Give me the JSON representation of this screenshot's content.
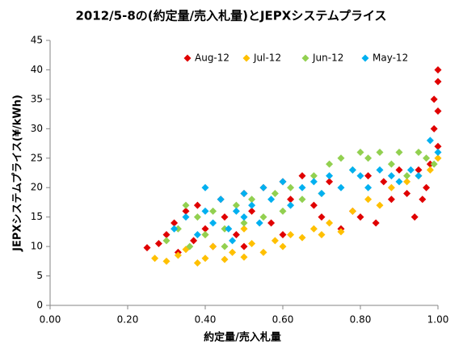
{
  "chart_data": {
    "type": "scatter",
    "title": "2012/5-8の(約定量/売入札量)とJEPXシステムプライス",
    "x_label": "約定量/売入札量",
    "y_label": "JEPXシステムプライス(¥/kWh)",
    "xlim": [
      0,
      1
    ],
    "xticks": [
      {
        "value": 0,
        "label": "0.00"
      },
      {
        "value": 0.2,
        "label": "0.20"
      },
      {
        "value": 0.4,
        "label": "0.40"
      },
      {
        "value": 0.6,
        "label": "0.60"
      },
      {
        "value": 0.8,
        "label": "0.80"
      },
      {
        "value": 1,
        "label": "1.00"
      }
    ],
    "ylim": [
      0,
      45
    ],
    "yticks": [
      0,
      5,
      10,
      15,
      20,
      25,
      30,
      35,
      40,
      45
    ],
    "grid": false,
    "legend": "top",
    "series": [
      {
        "name": "Aug-12",
        "color": "#e00000",
        "x": [
          0.25,
          0.28,
          0.3,
          0.32,
          0.33,
          0.35,
          0.37,
          0.38,
          0.4,
          0.42,
          0.44,
          0.45,
          0.48,
          0.5,
          0.52,
          0.55,
          0.57,
          0.6,
          0.62,
          0.65,
          0.68,
          0.7,
          0.72,
          0.75,
          0.78,
          0.8,
          0.82,
          0.84,
          0.86,
          0.88,
          0.9,
          0.92,
          0.94,
          0.95,
          0.96,
          0.98,
          0.99,
          0.99,
          1.0,
          1.0,
          1.0,
          1.0,
          0.97,
          0.6,
          0.5
        ],
        "values": [
          9.8,
          10.5,
          12,
          14,
          9,
          16,
          11,
          17,
          13,
          10,
          18,
          15,
          12,
          19,
          16,
          20,
          14,
          21,
          18,
          22,
          17,
          15,
          21,
          13,
          16,
          15,
          22,
          14,
          21,
          18,
          23,
          19,
          15,
          23,
          18,
          24,
          30,
          35,
          38,
          40,
          27,
          33,
          20,
          12,
          10
        ]
      },
      {
        "name": "Jul-12",
        "color": "#ffc000",
        "x": [
          0.27,
          0.3,
          0.33,
          0.35,
          0.38,
          0.4,
          0.42,
          0.45,
          0.47,
          0.5,
          0.52,
          0.55,
          0.58,
          0.6,
          0.62,
          0.65,
          0.68,
          0.7,
          0.72,
          0.75,
          0.78,
          0.82,
          0.85,
          0.88,
          0.92,
          0.95,
          0.98,
          1.0,
          0.4,
          0.5
        ],
        "values": [
          8,
          7.5,
          8.5,
          9.5,
          7.2,
          8,
          10,
          7.8,
          9,
          8.2,
          10.5,
          9,
          11,
          10,
          12,
          11.5,
          13,
          12,
          14,
          12.5,
          16,
          18,
          17,
          20,
          21,
          22,
          23,
          25,
          12,
          13
        ]
      },
      {
        "name": "Jun-12",
        "color": "#92d050",
        "x": [
          0.3,
          0.33,
          0.36,
          0.38,
          0.4,
          0.42,
          0.45,
          0.48,
          0.5,
          0.52,
          0.55,
          0.58,
          0.6,
          0.62,
          0.65,
          0.68,
          0.7,
          0.72,
          0.75,
          0.78,
          0.8,
          0.82,
          0.85,
          0.88,
          0.9,
          0.92,
          0.95,
          0.97,
          0.99,
          0.35,
          0.45
        ],
        "values": [
          11,
          13,
          10,
          15,
          12,
          16,
          13,
          17,
          14,
          18,
          15,
          19,
          16,
          20,
          18,
          22,
          19,
          24,
          25,
          23,
          26,
          25,
          26,
          24,
          26,
          22,
          26,
          25,
          24,
          17,
          10
        ]
      },
      {
        "name": "May-12",
        "color": "#00b0f0",
        "x": [
          0.32,
          0.35,
          0.38,
          0.4,
          0.42,
          0.44,
          0.46,
          0.48,
          0.5,
          0.5,
          0.52,
          0.54,
          0.55,
          0.57,
          0.6,
          0.62,
          0.65,
          0.68,
          0.7,
          0.72,
          0.75,
          0.78,
          0.8,
          0.82,
          0.85,
          0.88,
          0.9,
          0.93,
          0.95,
          0.98,
          1.0,
          0.47,
          0.4
        ],
        "values": [
          13,
          15,
          12,
          16,
          14,
          18,
          13,
          16,
          15,
          19,
          17,
          14,
          20,
          18,
          21,
          17,
          20,
          21,
          19,
          22,
          20,
          23,
          22,
          20,
          23,
          22,
          21,
          23,
          22,
          28,
          26,
          11,
          20
        ]
      }
    ]
  }
}
